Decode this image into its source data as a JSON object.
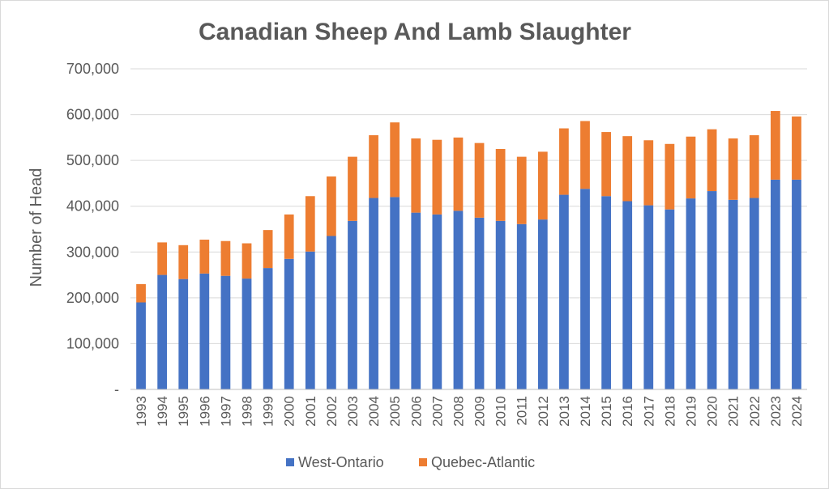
{
  "chart_data": {
    "type": "bar",
    "stacked": true,
    "title": "Canadian Sheep And Lamb Slaughter",
    "xlabel": "",
    "ylabel": "Number of Head",
    "ylim": [
      0,
      700000
    ],
    "yticks": [
      0,
      100000,
      200000,
      300000,
      400000,
      500000,
      600000,
      700000
    ],
    "ytick_labels": [
      "-",
      "100,000",
      "200,000",
      "300,000",
      "400,000",
      "500,000",
      "600,000",
      "700,000"
    ],
    "grid": true,
    "legend": "bottom",
    "categories": [
      "1993",
      "1994",
      "1995",
      "1996",
      "1997",
      "1998",
      "1999",
      "2000",
      "2001",
      "2002",
      "2003",
      "2004",
      "2005",
      "2006",
      "2007",
      "2008",
      "2009",
      "2010",
      "2011",
      "2012",
      "2013",
      "2014",
      "2015",
      "2016",
      "2017",
      "2018",
      "2019",
      "2020",
      "2021",
      "2022",
      "2023",
      "2024"
    ],
    "series": [
      {
        "name": "West-Ontario",
        "color": "#4472c4",
        "values": [
          190000,
          250000,
          241000,
          253000,
          248000,
          242000,
          265000,
          285000,
          301000,
          335000,
          368000,
          418000,
          420000,
          386000,
          382000,
          390000,
          375000,
          368000,
          361000,
          371000,
          425000,
          438000,
          422000,
          411000,
          402000,
          393000,
          417000,
          433000,
          414000,
          418000,
          458000,
          458000
        ]
      },
      {
        "name": "Quebec-Atlantic",
        "color": "#ed7d31",
        "values": [
          40000,
          71000,
          74000,
          74000,
          76000,
          77000,
          83000,
          97000,
          121000,
          130000,
          140000,
          137000,
          163000,
          162000,
          163000,
          160000,
          163000,
          157000,
          147000,
          148000,
          145000,
          148000,
          140000,
          142000,
          142000,
          143000,
          135000,
          135000,
          134000,
          137000,
          150000,
          138000
        ]
      }
    ]
  }
}
